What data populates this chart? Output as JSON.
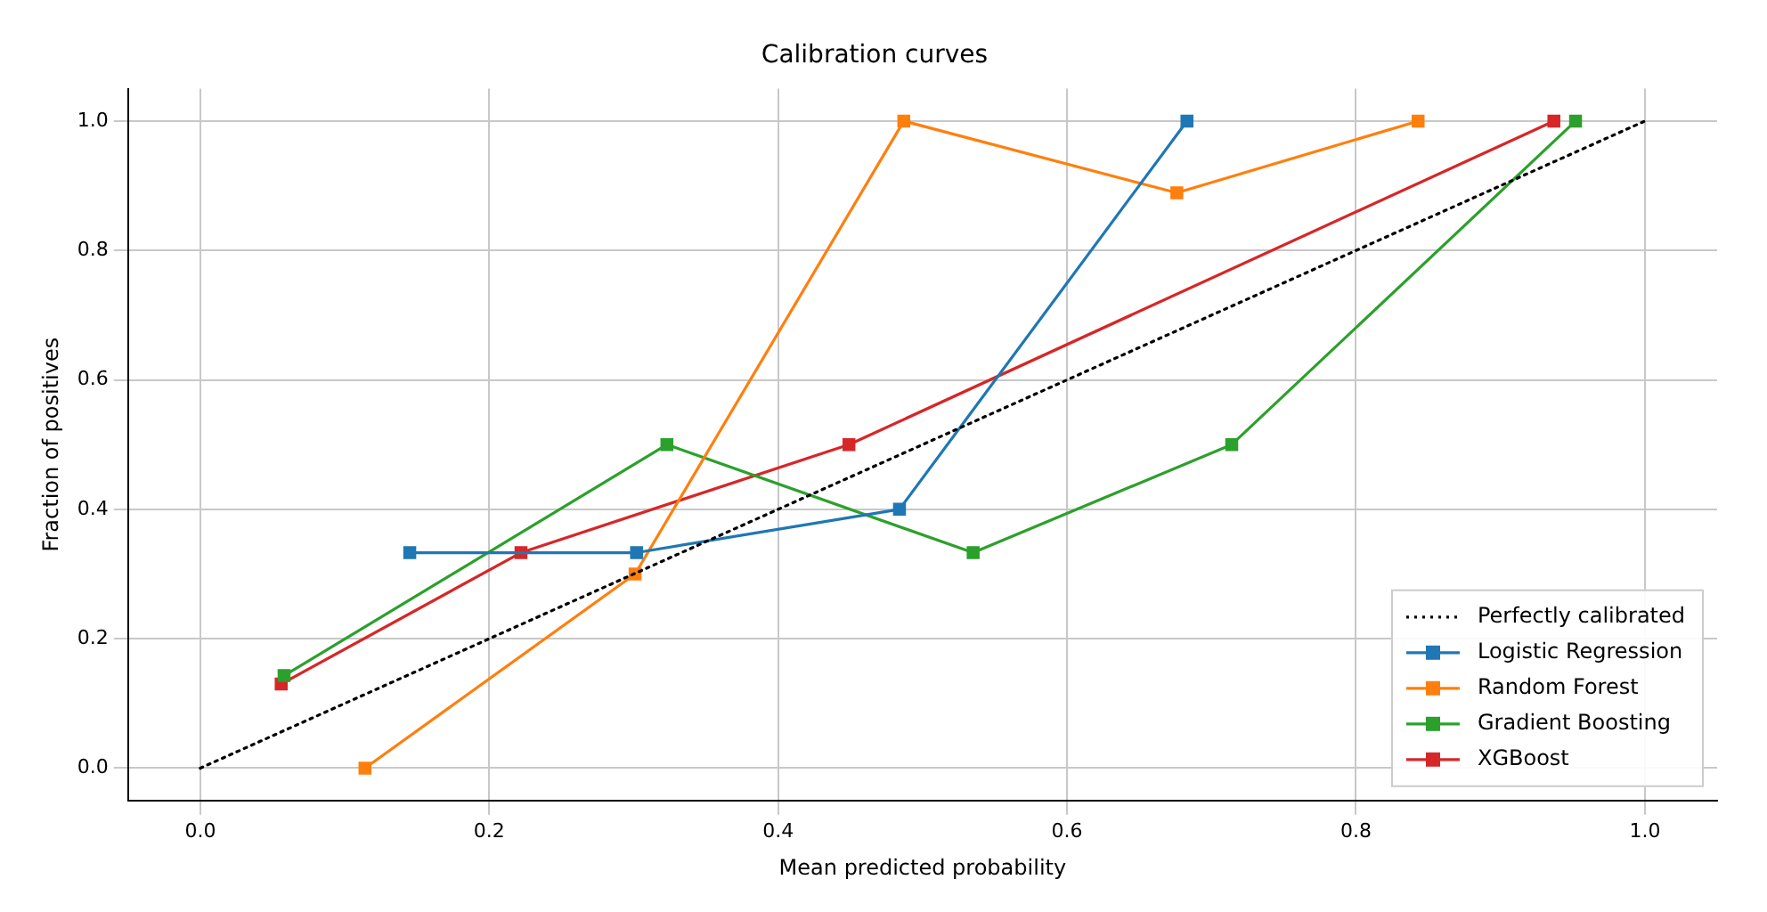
{
  "chart_data": {
    "type": "line",
    "title": "Calibration curves",
    "xlabel": "Mean predicted probability",
    "ylabel": "Fraction of positives",
    "xlim": [
      -0.05,
      1.05
    ],
    "ylim": [
      -0.05,
      1.05
    ],
    "xticks": [
      {
        "value": 0,
        "label": "0.0"
      },
      0.2,
      0.4,
      0.6,
      0.8,
      {
        "value": 1,
        "label": "1.0"
      }
    ],
    "yticks": [
      {
        "value": 0,
        "label": "0.0"
      },
      0.2,
      0.4,
      0.6,
      0.8,
      {
        "value": 1,
        "label": "1.0"
      }
    ],
    "grid": true,
    "legend": "bottom right",
    "marker": "square",
    "series": [
      {
        "name": "Perfectly calibrated",
        "color": "#000000",
        "x": [
          0,
          1
        ],
        "values": [
          0,
          1
        ],
        "marker": "none",
        "line_style": "dotted"
      },
      {
        "name": "Logistic Regression",
        "color": "#1f77b4",
        "x": [
          0.145,
          0.302,
          0.484,
          0.683
        ],
        "values": [
          0.333,
          0.333,
          0.4,
          1.0
        ]
      },
      {
        "name": "Random Forest",
        "color": "#ff7f0e",
        "x": [
          0.114,
          0.301,
          0.487,
          0.676,
          0.843
        ],
        "values": [
          0,
          0.3,
          1.0,
          0.889,
          1.0
        ]
      },
      {
        "name": "Gradient Boosting",
        "color": "#2ca02c",
        "x": [
          0.058,
          0.323,
          0.535,
          0.714,
          0.952
        ],
        "values": [
          0.143,
          0.5,
          0.333,
          0.5,
          1.0
        ]
      },
      {
        "name": "XGBoost",
        "color": "#d62728",
        "x": [
          0.056,
          0.222,
          0.449,
          0.937
        ],
        "values": [
          0.13,
          0.333,
          0.5,
          1.0
        ]
      }
    ]
  }
}
